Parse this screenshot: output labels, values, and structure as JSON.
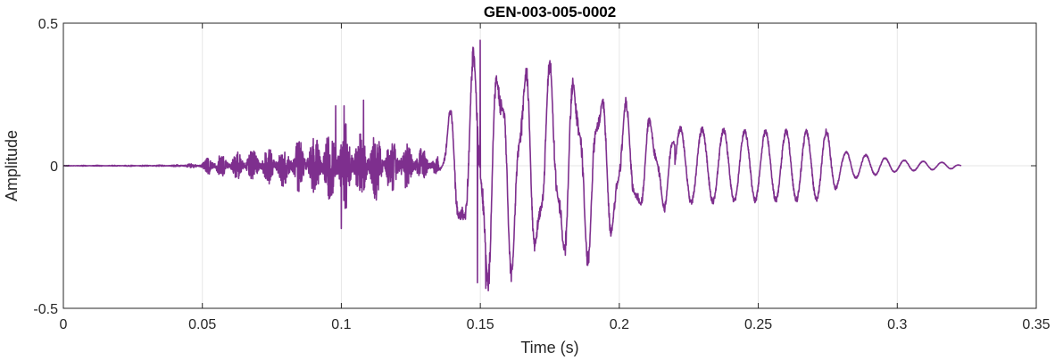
{
  "chart_data": {
    "type": "line",
    "title": "GEN-003-005-0002",
    "xlabel": "Time (s)",
    "ylabel": "Amplitude",
    "xlim": [
      0,
      0.35
    ],
    "ylim": [
      -0.5,
      0.5
    ],
    "xticks": [
      0,
      0.05,
      0.1,
      0.15,
      0.2,
      0.25,
      0.3,
      0.35
    ],
    "xtick_labels": [
      "0",
      "0.05",
      "0.1",
      "0.15",
      "0.2",
      "0.25",
      "0.3",
      "0.35"
    ],
    "yticks": [
      -0.5,
      0,
      0.5
    ],
    "ytick_labels": [
      "-0.5",
      "0",
      "0.5"
    ],
    "grid": true,
    "series": [
      {
        "color": "#7e2f8e",
        "duration": 0.323,
        "envelope": [
          [
            0,
            0.001
          ],
          [
            0.04,
            0.003
          ],
          [
            0.05,
            0.012
          ],
          [
            0.052,
            0.04
          ],
          [
            0.06,
            0.045
          ],
          [
            0.07,
            0.06
          ],
          [
            0.08,
            0.08
          ],
          [
            0.09,
            0.11
          ],
          [
            0.1,
            0.16
          ],
          [
            0.11,
            0.13
          ],
          [
            0.12,
            0.1
          ],
          [
            0.13,
            0.06
          ],
          [
            0.135,
            0.03
          ],
          [
            0.14,
            0.22
          ],
          [
            0.145,
            0.3
          ],
          [
            0.15,
            0.42
          ],
          [
            0.16,
            0.36
          ],
          [
            0.17,
            0.33
          ],
          [
            0.18,
            0.33
          ],
          [
            0.19,
            0.3
          ],
          [
            0.2,
            0.22
          ],
          [
            0.21,
            0.16
          ],
          [
            0.22,
            0.13
          ],
          [
            0.25,
            0.12
          ],
          [
            0.275,
            0.12
          ],
          [
            0.28,
            0.05
          ],
          [
            0.3,
            0.02
          ],
          [
            0.32,
            0.01
          ],
          [
            0.323,
            0.0
          ]
        ],
        "peaks": [
          [
            0.098,
            0.21
          ],
          [
            0.101,
            0.21
          ],
          [
            0.108,
            0.23
          ],
          [
            0.1,
            -0.22
          ],
          [
            0.15,
            0.44
          ],
          [
            0.149,
            -0.41
          ],
          [
            0.152,
            -0.43
          ],
          [
            0.147,
            0.3
          ]
        ]
      }
    ]
  }
}
